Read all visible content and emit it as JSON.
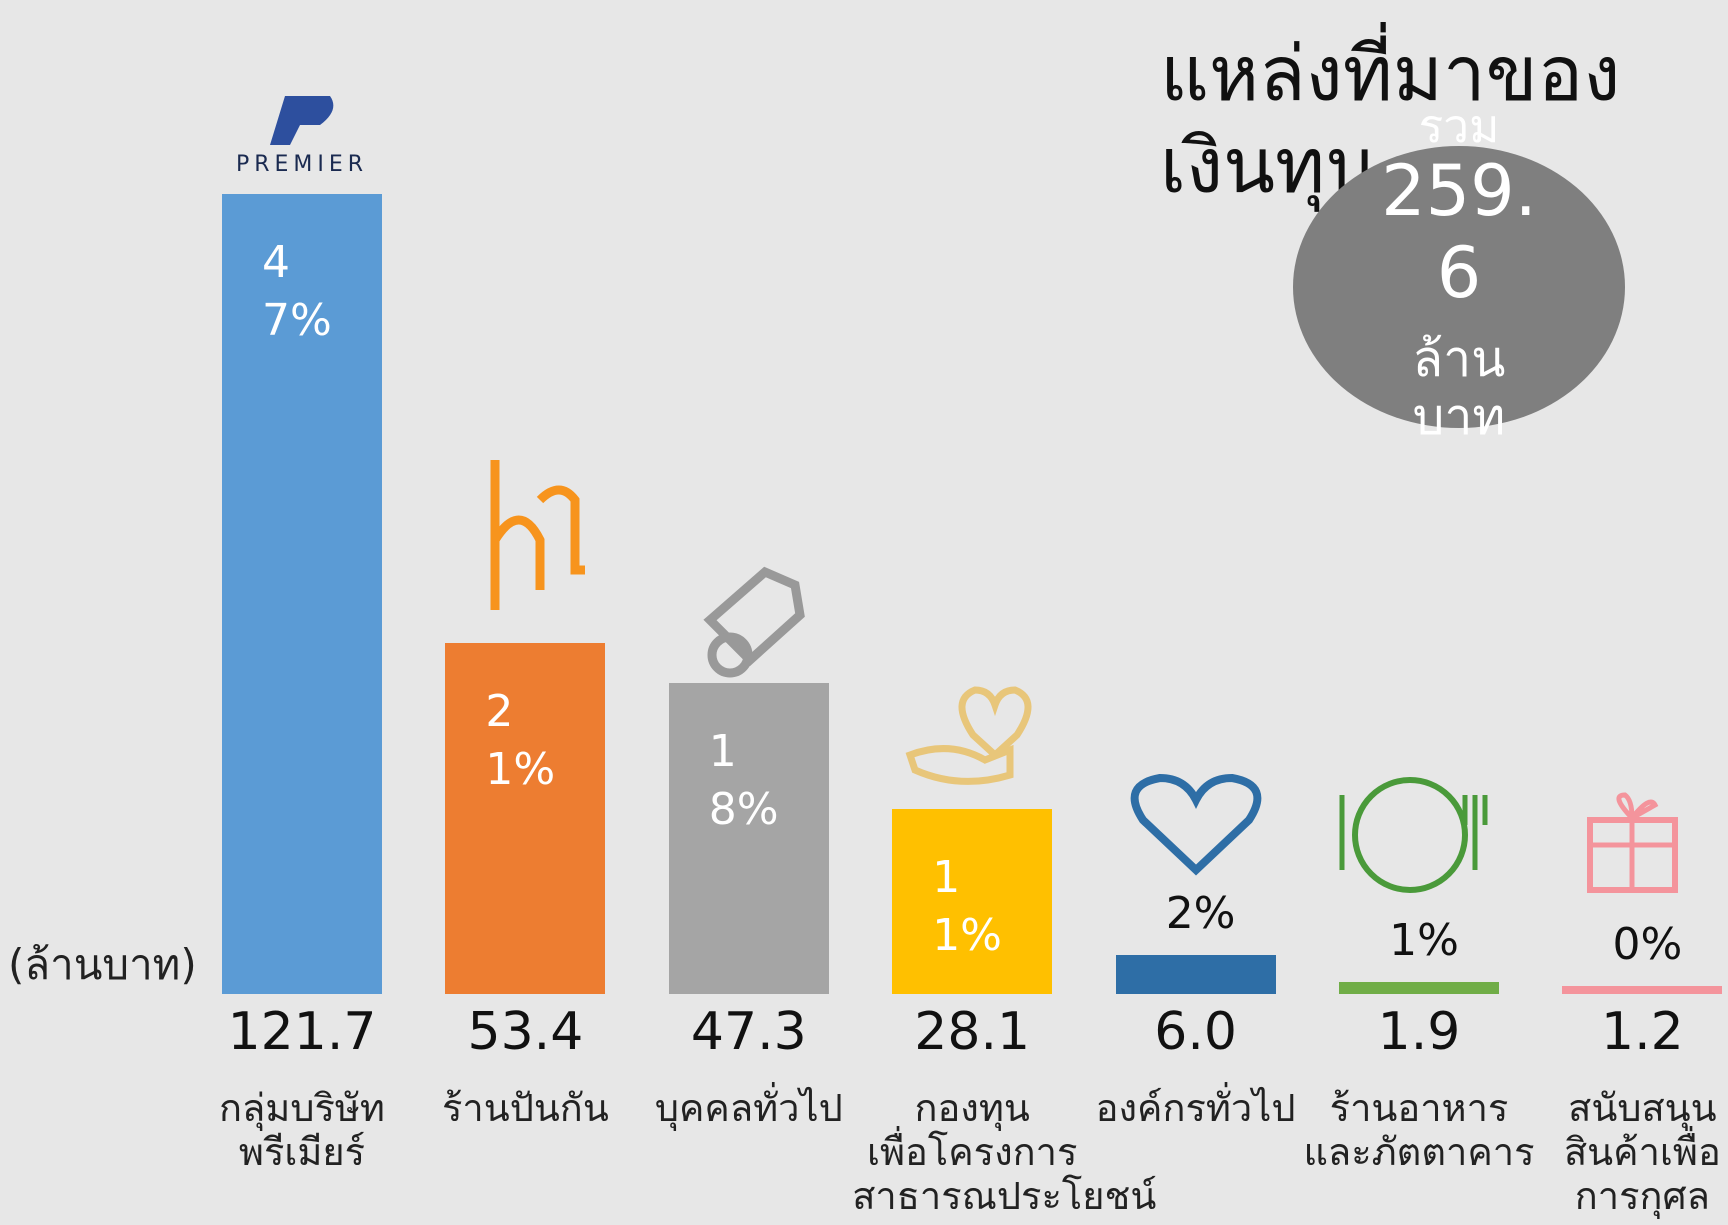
{
  "chart_data": {
    "type": "bar",
    "title": "แหล่งที่มาของ\nเงินทุน",
    "total_label": "รวม",
    "total_value": "259.6",
    "total_unit": "ล้าน\nบาท",
    "y_label": "(ล้านบาท)",
    "logo_text": "PREMIER",
    "categories": [
      "กลุ่มบริษัท\nพรีเมียร์",
      "ร้านปันกัน",
      "บุคคลทั่วไป",
      "กองทุน\nเพื่อโครงการ\nสาธารณประโยชน์",
      "องค์กรทั่วไป",
      "ร้านอาหาร\nและภัตตาคาร",
      "สนับสนุน\nสินค้าเพื่อ\nการกุศล"
    ],
    "values": [
      121.7,
      53.4,
      47.3,
      28.1,
      6,
      1.9,
      1.2
    ],
    "value_labels": [
      "121.7",
      "53.4",
      "47.3",
      "28.1",
      "6.0",
      "1.9",
      "1.2"
    ],
    "percent_labels": [
      "47%",
      "21%",
      "18%",
      "11%",
      "2%",
      "1%",
      "0%"
    ],
    "colors": [
      "#5b9bd5",
      "#ed7d31",
      "#a5a5a5",
      "#ffc000",
      "#2e6ea6",
      "#70ad47",
      "#f4949c"
    ],
    "ylim": [
      0,
      121.7
    ]
  }
}
